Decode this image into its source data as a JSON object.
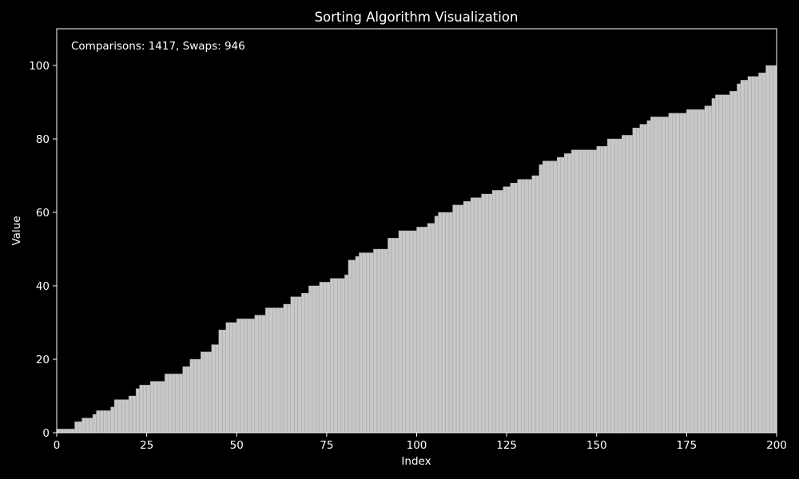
{
  "chart_data": {
    "type": "bar",
    "title": "Sorting Algorithm Visualization",
    "xlabel": "Index",
    "ylabel": "Value",
    "annotation": "Comparisons: 1417, Swaps: 946",
    "xlim": [
      0,
      200
    ],
    "ylim": [
      0,
      110
    ],
    "xticks": [
      0,
      25,
      50,
      75,
      100,
      125,
      150,
      175,
      200
    ],
    "yticks": [
      0,
      20,
      40,
      60,
      80,
      100
    ],
    "grid": false,
    "legend": "none",
    "colors": {
      "background": "#000000",
      "bar": "#c8c8c8",
      "bar_edge": "#a0a0a0",
      "text": "#ffffff",
      "axis": "#ffffff"
    },
    "knots": [
      [
        0,
        1
      ],
      [
        4,
        1
      ],
      [
        5,
        3
      ],
      [
        7,
        4
      ],
      [
        10,
        5
      ],
      [
        11,
        6
      ],
      [
        15,
        7
      ],
      [
        16,
        9
      ],
      [
        20,
        10
      ],
      [
        22,
        12
      ],
      [
        23,
        13
      ],
      [
        26,
        14
      ],
      [
        30,
        16
      ],
      [
        35,
        18
      ],
      [
        37,
        20
      ],
      [
        40,
        22
      ],
      [
        43,
        24
      ],
      [
        45,
        28
      ],
      [
        47,
        30
      ],
      [
        50,
        31
      ],
      [
        55,
        32
      ],
      [
        58,
        34
      ],
      [
        63,
        35
      ],
      [
        65,
        37
      ],
      [
        68,
        38
      ],
      [
        70,
        40
      ],
      [
        73,
        41
      ],
      [
        76,
        42
      ],
      [
        80,
        43
      ],
      [
        81,
        47
      ],
      [
        83,
        48
      ],
      [
        84,
        49
      ],
      [
        88,
        50
      ],
      [
        92,
        53
      ],
      [
        95,
        55
      ],
      [
        100,
        56
      ],
      [
        103,
        57
      ],
      [
        105,
        59
      ],
      [
        106,
        60
      ],
      [
        110,
        62
      ],
      [
        113,
        63
      ],
      [
        115,
        64
      ],
      [
        118,
        65
      ],
      [
        121,
        66
      ],
      [
        124,
        67
      ],
      [
        126,
        68
      ],
      [
        128,
        69
      ],
      [
        132,
        70
      ],
      [
        134,
        73
      ],
      [
        135,
        74
      ],
      [
        139,
        75
      ],
      [
        141,
        76
      ],
      [
        143,
        77
      ],
      [
        150,
        78
      ],
      [
        153,
        80
      ],
      [
        157,
        81
      ],
      [
        160,
        83
      ],
      [
        162,
        84
      ],
      [
        164,
        85
      ],
      [
        165,
        86
      ],
      [
        170,
        87
      ],
      [
        175,
        88
      ],
      [
        180,
        89
      ],
      [
        182,
        91
      ],
      [
        183,
        92
      ],
      [
        187,
        93
      ],
      [
        189,
        95
      ],
      [
        190,
        96
      ],
      [
        192,
        97
      ],
      [
        195,
        98
      ],
      [
        197,
        100
      ],
      [
        199,
        100
      ]
    ]
  }
}
